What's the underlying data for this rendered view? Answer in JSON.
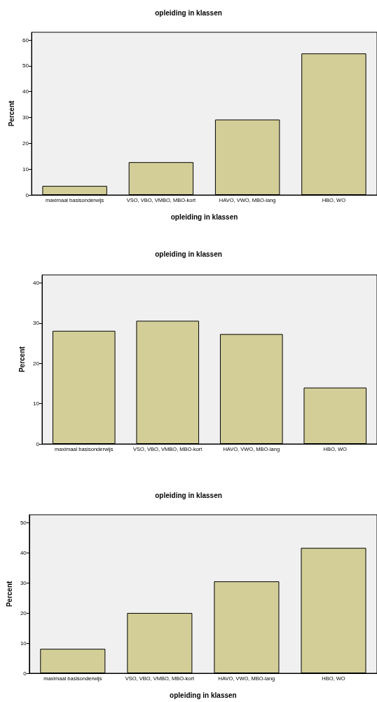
{
  "chart_data": [
    {
      "type": "bar",
      "title": "opleiding in klassen",
      "xlabel": "opleiding in klassen",
      "ylabel": "Percent",
      "categories": [
        "maximaal basisonderwijs",
        "VSO, VBO, VMBO, MBO-kort",
        "HAVO, VWO, MBO-lang",
        "HBO, WO"
      ],
      "values": [
        3.5,
        12.7,
        29.2,
        54.8
      ],
      "color": "#d3ce97",
      "ylim": [
        0,
        63
      ],
      "yticks": [
        0,
        10,
        20,
        30,
        40,
        50,
        60
      ],
      "grid": false
    },
    {
      "type": "bar",
      "title": "opleiding in klassen",
      "ylabel": "Percent",
      "categories": [
        "maximaal basisonderwijs",
        "VSO, VBO, VMBO, MBO-kort",
        "HAVO, VWO, MBO-lang",
        "HBO, WO"
      ],
      "values": [
        28.1,
        30.6,
        27.3,
        14.0
      ],
      "color": "#d3ce97",
      "ylim": [
        0,
        42
      ],
      "yticks": [
        0,
        10,
        20,
        30,
        40
      ],
      "grid": false
    },
    {
      "type": "bar",
      "title": "opleiding in klassen",
      "xlabel": "opleiding in klassen",
      "ylabel": "Percent",
      "categories": [
        "maximaal basisonderwijs",
        "VSO, VBO, VMBO, MBO-kort",
        "HAVO, VWO, MBO-lang",
        "HBO, WO"
      ],
      "values": [
        8.1,
        20.0,
        30.5,
        41.6
      ],
      "color": "#d3ce97",
      "ylim": [
        0,
        52.6
      ],
      "yticks": [
        0,
        10,
        20,
        30,
        40,
        50
      ],
      "grid": false
    }
  ]
}
